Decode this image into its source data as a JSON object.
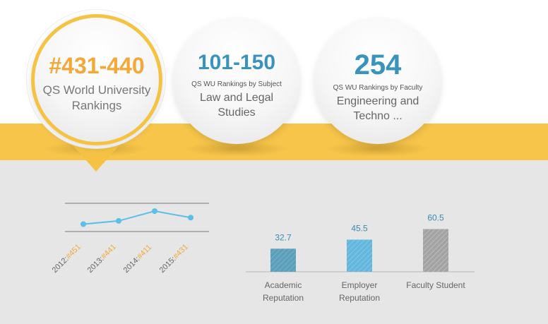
{
  "overall": {
    "rank": "#431-440",
    "label": "QS World University Rankings"
  },
  "subject": {
    "rank": "101-150",
    "caption": "QS WU Rankings by Subject",
    "name": "Law and Legal Studies"
  },
  "faculty": {
    "rank": "254",
    "caption": "QS WU Rankings by Faculty",
    "name": "Engineering and Techno ..."
  },
  "history": {
    "items": [
      {
        "year": "2012:",
        "rank": "#451"
      },
      {
        "year": "2013:",
        "rank": "#441"
      },
      {
        "year": "2014:",
        "rank": "#411"
      },
      {
        "year": "2015:",
        "rank": "#431"
      }
    ]
  },
  "chart_data": [
    {
      "type": "line",
      "categories": [
        "2012",
        "2013",
        "2014",
        "2015"
      ],
      "values": [
        451,
        441,
        411,
        431
      ],
      "ylim": [
        400,
        460
      ],
      "inverted": true,
      "grid": false
    },
    {
      "type": "bar",
      "categories": [
        "Academic Reputation",
        "Employer Reputation",
        "Faculty Student"
      ],
      "values": [
        32.7,
        45.5,
        60.5
      ],
      "labels": [
        "32.7",
        "45.5",
        "60.5"
      ],
      "ylim": [
        0,
        100
      ],
      "colors": [
        "#5b9fba",
        "#63b7dc",
        "#a3a3a3"
      ]
    }
  ]
}
